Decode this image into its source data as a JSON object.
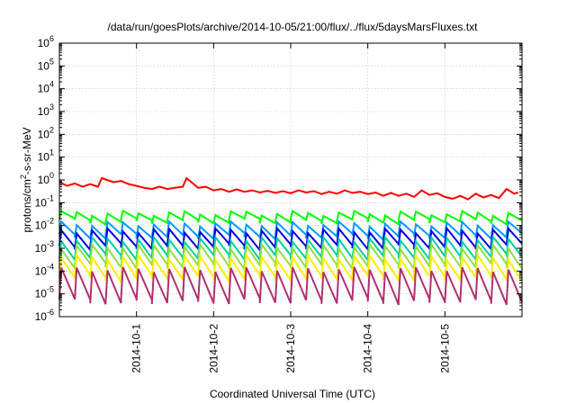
{
  "chart_data": {
    "type": "line",
    "title": "/data/run/goesPlots/archive/2014-10-05/21:00/flux/../flux/5daysMarsFluxes.txt",
    "xlabel": "Coordinated Universal Time (UTC)",
    "ylabel": "protons/cm²-s-sr-MeV",
    "yscale": "log",
    "ylim": [
      1e-06,
      1000000.0
    ],
    "xlim": [
      0,
      6.0
    ],
    "grid": true,
    "legend": "none",
    "x_ticks": [
      {
        "x": 1,
        "label": "2014-10-1"
      },
      {
        "x": 2,
        "label": "2014-10-2"
      },
      {
        "x": 3,
        "label": "2014-10-3"
      },
      {
        "x": 4,
        "label": "2014-10-4"
      },
      {
        "x": 5,
        "label": "2014-10-5"
      }
    ],
    "y_ticks": [
      {
        "y": 1e-06,
        "base": "10",
        "exp": "-6"
      },
      {
        "y": 1e-05,
        "base": "10",
        "exp": "-5"
      },
      {
        "y": 0.0001,
        "base": "10",
        "exp": "-4"
      },
      {
        "y": 0.001,
        "base": "10",
        "exp": "-3"
      },
      {
        "y": 0.01,
        "base": "10",
        "exp": "-2"
      },
      {
        "y": 0.1,
        "base": "10",
        "exp": "-1"
      },
      {
        "y": 1,
        "base": "10",
        "exp": "0"
      },
      {
        "y": 10,
        "base": "10",
        "exp": "1"
      },
      {
        "y": 100,
        "base": "10",
        "exp": "2"
      },
      {
        "y": 1000,
        "base": "10",
        "exp": "3"
      },
      {
        "y": 10000.0,
        "base": "10",
        "exp": "4"
      },
      {
        "y": 100000.0,
        "base": "10",
        "exp": "5"
      },
      {
        "y": 1000000.0,
        "base": "10",
        "exp": "6"
      }
    ],
    "series": [
      {
        "color": "#ff0000",
        "x": [
          0.0,
          0.1,
          0.2,
          0.3,
          0.4,
          0.5,
          0.55,
          0.7,
          0.8,
          0.9,
          1.0,
          1.1,
          1.2,
          1.3,
          1.4,
          1.5,
          1.6,
          1.65,
          1.8,
          1.9,
          2.0,
          2.1,
          2.2,
          2.3,
          2.4,
          2.5,
          2.6,
          2.7,
          2.8,
          2.9,
          3.0,
          3.1,
          3.2,
          3.3,
          3.4,
          3.5,
          3.6,
          3.7,
          3.8,
          3.9,
          4.0,
          4.1,
          4.2,
          4.3,
          4.4,
          4.5,
          4.6,
          4.7,
          4.8,
          4.9,
          5.0,
          5.1,
          5.2,
          5.3,
          5.4,
          5.5,
          5.6,
          5.7,
          5.8,
          5.9,
          5.95
        ],
        "values": [
          0.8,
          0.55,
          0.7,
          0.5,
          0.65,
          0.5,
          1.2,
          0.8,
          0.9,
          0.65,
          0.55,
          0.45,
          0.4,
          0.5,
          0.4,
          0.45,
          0.5,
          1.2,
          0.45,
          0.5,
          0.35,
          0.4,
          0.3,
          0.38,
          0.3,
          0.35,
          0.28,
          0.33,
          0.27,
          0.32,
          0.26,
          0.35,
          0.28,
          0.32,
          0.24,
          0.3,
          0.25,
          0.35,
          0.27,
          0.3,
          0.24,
          0.28,
          0.2,
          0.27,
          0.2,
          0.25,
          0.18,
          0.35,
          0.22,
          0.26,
          0.18,
          0.15,
          0.2,
          0.14,
          0.25,
          0.17,
          0.22,
          0.16,
          0.4,
          0.25,
          0.28
        ]
      },
      {
        "color": "#00ff00",
        "base": 0.035,
        "decay": 2.2,
        "cycle": 0.2
      },
      {
        "color": "#0099ff",
        "base": 0.012,
        "decay": 3.5,
        "cycle": 0.2
      },
      {
        "color": "#0000e0",
        "base": 0.006,
        "decay": 5.0,
        "cycle": 0.2
      },
      {
        "color": "#00d0a0",
        "base": 0.0025,
        "decay": 6.0,
        "cycle": 0.2
      },
      {
        "color": "#90e040",
        "base": 0.0012,
        "decay": 7.0,
        "cycle": 0.2
      },
      {
        "color": "#ffee00",
        "base": 0.0004,
        "decay": 8.0,
        "cycle": 0.2
      },
      {
        "color": "#b03070",
        "base": 0.00012,
        "decay": 25.0,
        "cycle": 0.2
      }
    ]
  }
}
